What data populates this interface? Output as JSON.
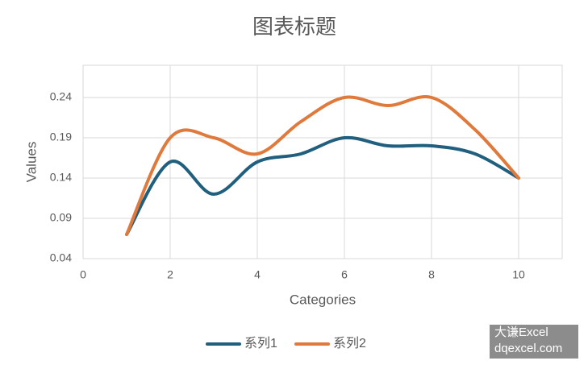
{
  "chart_data": {
    "type": "line",
    "title": "图表标题",
    "x_label": "Categories",
    "y_label": "Values",
    "x": [
      1,
      2,
      3,
      4,
      5,
      6,
      7,
      8,
      9,
      10
    ],
    "series": [
      {
        "name": "系列1",
        "color": "#215f7e",
        "values": [
          0.07,
          0.16,
          0.12,
          0.16,
          0.17,
          0.19,
          0.18,
          0.18,
          0.17,
          0.14
        ]
      },
      {
        "name": "系列2",
        "color": "#e07a3c",
        "values": [
          0.07,
          0.19,
          0.19,
          0.17,
          0.21,
          0.24,
          0.23,
          0.24,
          0.2,
          0.14
        ]
      }
    ],
    "xlim": [
      0,
      11
    ],
    "xticks": [
      0,
      2,
      4,
      6,
      8,
      10
    ],
    "ylim": [
      0.04,
      0.28
    ],
    "yticks": [
      0.04,
      0.09,
      0.14,
      0.19,
      0.24
    ],
    "grid": true,
    "smooth": true,
    "legend": "bottom",
    "watermark": [
      "大谦Excel",
      "dqexcel.com"
    ]
  }
}
